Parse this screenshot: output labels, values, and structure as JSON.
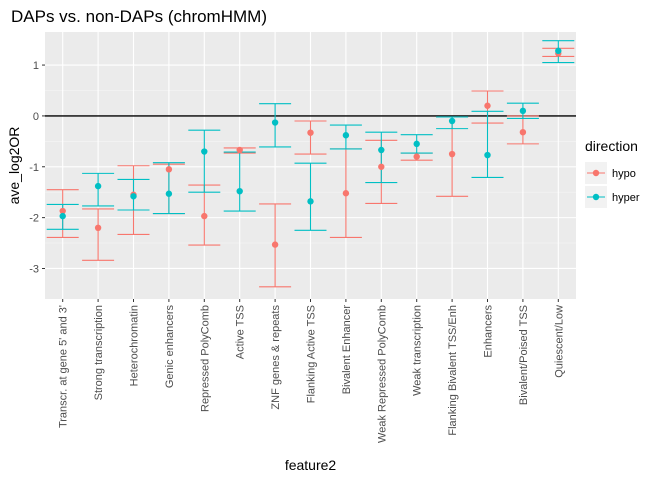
{
  "chart_data": {
    "type": "scatter",
    "title": "DAPs vs. non-DAPs (chromHMM)",
    "xlabel": "feature2",
    "ylabel": "ave_log2OR",
    "categories": [
      "Transcr. at gene 5' and 3'",
      "Strong transcription",
      "Heterochromatin",
      "Genic enhancers",
      "Repressed PolyComb",
      "Active TSS",
      "ZNF genes & repeats",
      "Flanking Active TSS",
      "Bivalent Enhancer",
      "Weak Repressed PolyComb",
      "Weak transcription",
      "Flanking Bivalent TSS/Enh",
      "Enhancers",
      "Bivalent/Poised TSS",
      "Quiescent/Low"
    ],
    "yticks": [
      -3,
      -2,
      -1,
      0,
      1
    ],
    "ylim": [
      -3.6,
      1.65
    ],
    "hline": 0,
    "grid": true,
    "legend": {
      "title": "direction",
      "position": "right"
    },
    "series": [
      {
        "name": "hypo",
        "color": "#F8766D",
        "values": [
          -1.87,
          -2.2,
          -1.55,
          -1.05,
          -1.97,
          -0.67,
          -2.53,
          -0.33,
          -1.52,
          -1.0,
          -0.8,
          -0.75,
          0.2,
          -0.32,
          1.23
        ],
        "lower": [
          -2.39,
          -2.84,
          -2.33,
          -1.92,
          -2.54,
          -0.73,
          -3.36,
          -0.75,
          -2.39,
          -1.72,
          -0.87,
          -1.58,
          -0.14,
          -0.55,
          1.17
        ],
        "upper": [
          -1.45,
          -1.83,
          -0.98,
          -0.95,
          -1.36,
          -0.63,
          -1.73,
          -0.1,
          -0.65,
          -0.48,
          -0.73,
          -0.02,
          0.49,
          0.0,
          1.33
        ]
      },
      {
        "name": "hyper",
        "color": "#00BFC4",
        "values": [
          -1.97,
          -1.38,
          -1.58,
          -1.53,
          -0.7,
          -1.48,
          -0.13,
          -1.68,
          -0.38,
          -0.67,
          -0.55,
          -0.1,
          -0.77,
          0.1,
          1.28
        ],
        "lower": [
          -2.23,
          -1.77,
          -1.85,
          -1.92,
          -1.5,
          -1.87,
          -0.61,
          -2.25,
          -0.65,
          -1.31,
          -0.73,
          -0.25,
          -1.21,
          -0.05,
          1.05
        ],
        "upper": [
          -1.74,
          -1.13,
          -1.25,
          -0.92,
          -0.28,
          -0.71,
          0.24,
          -0.93,
          -0.18,
          -0.32,
          -0.37,
          -0.02,
          0.09,
          0.25,
          1.48
        ]
      }
    ]
  }
}
